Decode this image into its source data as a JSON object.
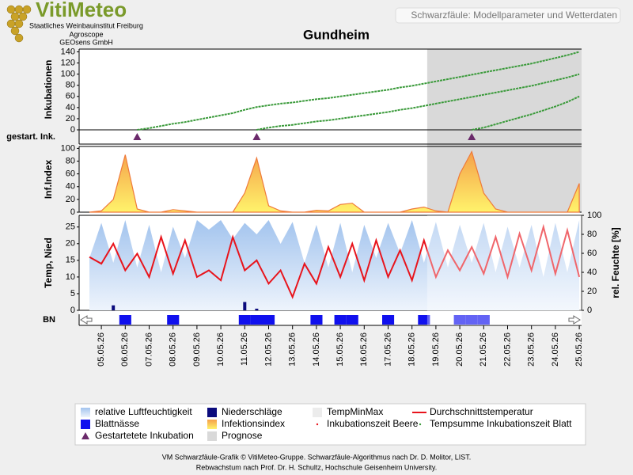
{
  "header": {
    "logo": "VitiMeteo",
    "org1": "Staatliches Weinbauinstitut Freiburg",
    "org2": "Agroscope",
    "org3": "GEOsens GmbH",
    "subtitle": "Schwarzfäule: Modellparameter und Wetterdaten"
  },
  "footer": {
    "line1": "VM Schwarzfäule-Grafik © VitiMeteo-Gruppe. Schwarzfäule-Algorithmus nach Dr. D. Molitor, LIST.",
    "line2": "Rebwachstum nach Prof. Dr. H. Schultz, Hochschule Geisenheim University."
  },
  "chart_data": {
    "type": "combo",
    "title": "Gundheim",
    "categories": [
      null,
      "05.05.26",
      null,
      "06.05.26",
      null,
      "07.05.26",
      null,
      "08.05.26",
      null,
      "09.05.26",
      null,
      "10.05.26",
      null,
      "11.05.26",
      null,
      "12.05.26",
      null,
      "13.05.26",
      null,
      "14.05.26",
      null,
      "15.05.26",
      null,
      "16.05.26",
      null,
      "17.05.26",
      null,
      "18.05.26",
      null,
      "19.05.26",
      null,
      "20.05.26",
      null,
      "21.05.26",
      null,
      "22.05.26",
      null,
      "23.05.26",
      null,
      "24.05.26",
      null,
      "25.05.26"
    ],
    "panels": [
      {
        "y_label": "Inkubationen",
        "ylim": [
          0,
          145
        ],
        "yticks": [
          0,
          20,
          40,
          60,
          80,
          100,
          120,
          140
        ]
      },
      {
        "y_label": "gestart. Ink."
      },
      {
        "y_label": "Inf.Index",
        "ylim": [
          0,
          103
        ],
        "yticks": [
          0,
          20,
          40,
          60,
          80,
          100
        ]
      },
      {
        "y_label": "Temp, Nied",
        "ylim": [
          0,
          28.5
        ],
        "yticks": [
          0,
          5,
          10,
          15,
          20,
          25
        ],
        "y2_label": "rel. Feuchte [%]",
        "y2lim": [
          0,
          100
        ],
        "y2ticks": [
          0,
          20,
          40,
          60,
          80,
          100
        ]
      },
      {
        "y_label": "BN"
      }
    ],
    "series": [
      {
        "name": "relative Luftfeuchtigkeit",
        "type": "area",
        "panel": 3,
        "axis": "y2",
        "colors": [
          "#a3c4ee",
          "#eef4fc"
        ],
        "values": [
          55,
          92,
          50,
          95,
          45,
          90,
          40,
          88,
          55,
          95,
          85,
          95,
          75,
          92,
          80,
          95,
          70,
          93,
          50,
          90,
          45,
          92,
          40,
          90,
          55,
          92,
          60,
          95,
          50,
          93,
          45,
          90,
          50,
          92,
          40,
          88,
          45,
          90,
          35,
          92,
          40,
          95
        ]
      },
      {
        "name": "Niederschläge",
        "type": "bar",
        "panel": 3,
        "color": "#0b0b7d",
        "values": [
          0,
          0,
          1.5,
          0,
          0,
          0,
          0,
          0,
          0,
          0,
          0,
          0,
          0,
          2.5,
          0.5,
          0,
          0,
          0,
          0,
          0,
          0,
          0,
          0,
          0,
          0,
          0,
          0,
          0,
          0,
          0,
          0,
          0,
          0,
          0,
          0,
          0,
          0,
          0,
          0,
          0,
          0,
          0
        ]
      },
      {
        "name": "TempMinMax",
        "type": "band",
        "color": "#ececec"
      },
      {
        "name": "Durchschnittstemperatur",
        "type": "line",
        "panel": 3,
        "color": "#e8141c",
        "values": [
          16,
          14,
          20,
          12,
          17,
          10,
          22,
          11,
          21,
          10,
          12,
          9,
          22,
          12,
          15,
          8,
          12,
          4,
          14,
          8,
          19,
          10,
          20,
          9,
          21,
          10,
          18,
          9,
          21,
          10,
          18,
          12,
          19,
          11,
          22,
          10,
          23,
          12,
          25,
          11,
          24,
          10
        ]
      },
      {
        "name": "Blattnässe",
        "type": "strip",
        "panel": 4,
        "color": "#1010ee",
        "values": [
          0,
          0,
          0,
          1,
          0,
          0,
          0,
          1,
          0,
          0,
          0,
          0,
          0,
          1,
          1,
          1,
          0,
          0,
          0,
          1,
          0,
          1,
          1,
          0,
          0,
          1,
          0,
          0,
          1,
          0,
          0,
          1,
          1,
          1,
          0,
          0,
          0,
          0,
          0,
          0,
          0,
          0
        ]
      },
      {
        "name": "Infektionsindex",
        "type": "area",
        "panel": 2,
        "colors": [
          "#f5a04a",
          "#fff36b"
        ],
        "stroke": "#ef7a3a",
        "values": [
          0,
          2,
          20,
          90,
          5,
          0,
          0,
          4,
          2,
          0,
          0,
          0,
          0,
          30,
          85,
          10,
          2,
          0,
          0,
          3,
          2,
          12,
          14,
          0,
          0,
          0,
          0,
          5,
          8,
          2,
          0,
          60,
          95,
          30,
          5,
          0,
          0,
          0,
          0,
          0,
          0,
          45
        ]
      },
      {
        "name": "Inkubationszeit Beere",
        "type": "dot",
        "color": "#e8141c"
      },
      {
        "name": "Tempsumme Inkubationszeit Blatt",
        "type": "multiline",
        "panel": 0,
        "color": "#3a9a3a",
        "values": [
          [
            null,
            null,
            null,
            null,
            0,
            3,
            7,
            11,
            14,
            18,
            22,
            26,
            30,
            36,
            41,
            44,
            47,
            49,
            52,
            55,
            57,
            60,
            63,
            66,
            69,
            72,
            76,
            79,
            83,
            87,
            91,
            95,
            99,
            103,
            107,
            111,
            115,
            119,
            124,
            129,
            134,
            140
          ],
          [
            null,
            null,
            null,
            null,
            null,
            null,
            null,
            null,
            null,
            null,
            null,
            null,
            null,
            null,
            0,
            4,
            7,
            9,
            12,
            15,
            17,
            20,
            23,
            26,
            29,
            32,
            36,
            39,
            43,
            47,
            51,
            55,
            59,
            63,
            67,
            71,
            75,
            79,
            84,
            89,
            94,
            100
          ],
          [
            null,
            null,
            null,
            null,
            null,
            null,
            null,
            null,
            null,
            null,
            null,
            null,
            null,
            null,
            null,
            null,
            null,
            null,
            null,
            null,
            null,
            null,
            null,
            null,
            null,
            null,
            null,
            null,
            null,
            null,
            null,
            null,
            0,
            4,
            10,
            16,
            22,
            28,
            35,
            42,
            50,
            60
          ]
        ]
      },
      {
        "name": "Gestartetete Inkubation",
        "type": "marker",
        "panel": 1,
        "color": "#6b2a6b"
      },
      {
        "name": "Prognose",
        "type": "region",
        "color": "#d9d9d9",
        "from": "19.05.26"
      }
    ]
  }
}
